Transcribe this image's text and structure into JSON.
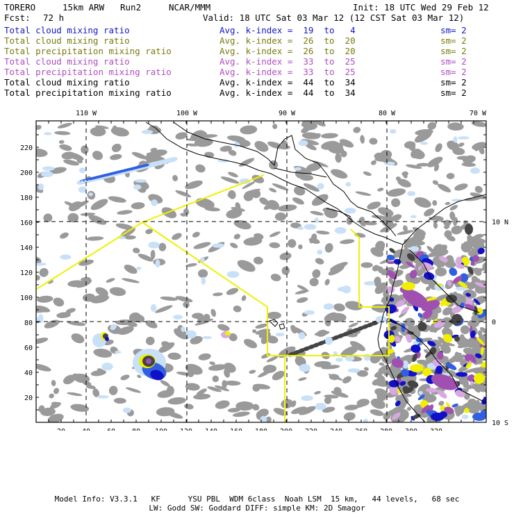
{
  "header": {
    "model": "TORERO",
    "resolution": "15km ARW",
    "run": "Run2",
    "org": "NCAR/MMM",
    "init": "Init: 18 UTC Wed 29 Feb 12",
    "fcst_label": "Fcst:",
    "fcst_value": "72 h",
    "valid": "Valid: 18 UTC Sat 03 Mar 12 (12 CST Sat 03 Mar 12)"
  },
  "legend": [
    {
      "name": "Total cloud mixing ratio",
      "kindex": "Avg. k-index =  19  to   4",
      "sm": "sm= 2",
      "color": "#1515c8"
    },
    {
      "name": "Total cloud mixing ratio",
      "kindex": "Avg. k-index =  26  to  20",
      "sm": "sm= 2",
      "color": "#7a7a10"
    },
    {
      "name": "Total precipitation mixing ratio",
      "kindex": "Avg. k-index =  26  to  20",
      "sm": "sm= 2",
      "color": "#7a7a10"
    },
    {
      "name": "Total cloud mixing ratio",
      "kindex": "Avg. k-index =  33  to  25",
      "sm": "sm= 2",
      "color": "#b04cc0"
    },
    {
      "name": "Total precipitation mixing ratio",
      "kindex": "Avg. k-index =  33  to  25",
      "sm": "sm= 2",
      "color": "#b04cc0"
    },
    {
      "name": "Total cloud mixing ratio",
      "kindex": "Avg. k-index =  44  to  34",
      "sm": "sm= 2",
      "color": "#000000"
    },
    {
      "name": "Total precipitation mixing ratio",
      "kindex": "Avg. k-index =  44  to  34",
      "sm": "sm= 2",
      "color": "#000000"
    }
  ],
  "map": {
    "lon_labels": [
      "110 W",
      "100 W",
      "90 W",
      "80 W",
      "70 W"
    ],
    "lat_labels": [
      "10 N",
      "0",
      "10 S"
    ],
    "x_ticks": [
      "20",
      "40",
      "60",
      "80",
      "100",
      "120",
      "140",
      "160",
      "180",
      "200",
      "220",
      "240",
      "260",
      "280",
      "300",
      "320"
    ],
    "y_ticks": [
      "220",
      "200",
      "180",
      "160",
      "140",
      "120",
      "100",
      "80",
      "60",
      "40",
      "20"
    ],
    "colors": {
      "cloud_gray": "#9a9a9a",
      "dark_gray": "#444444",
      "light_blue": "#c8e0f8",
      "blue": "#3060e0",
      "deep_blue": "#1010c8",
      "yellow": "#f0f000",
      "purple": "#a050b0",
      "light_purple": "#d8a8e0"
    }
  },
  "footer": {
    "line1": "Model Info: V3.3.1   KF      YSU PBL  WDM 6class  Noah LSM  15 km,   44 levels,   68 sec",
    "line2": "LW: Godd SW: Goddard DIFF: simple KM: 2D Smagor"
  }
}
